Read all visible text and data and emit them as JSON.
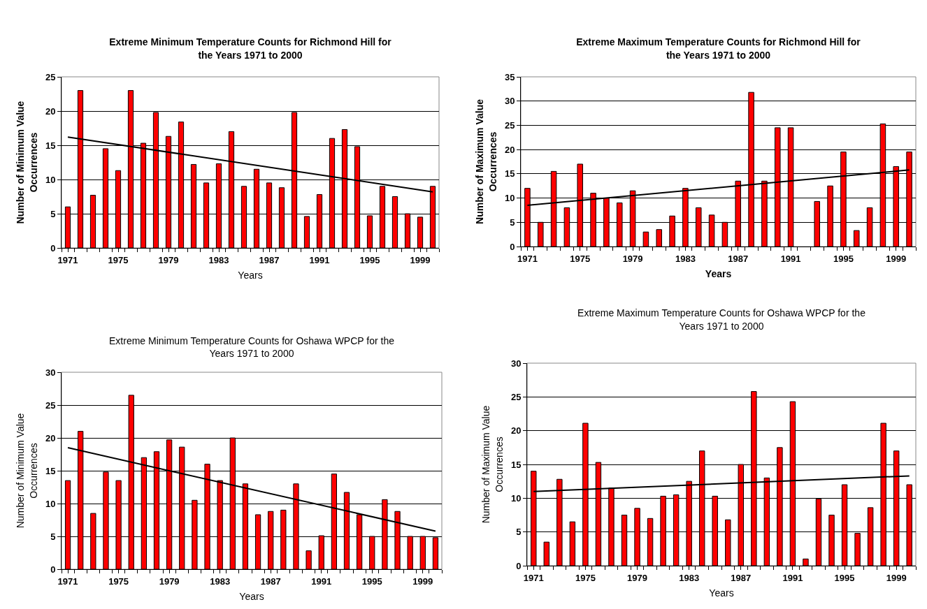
{
  "chart_data": [
    {
      "type": "bar",
      "title": "Extreme Minimum Temperature Counts for Richmond Hill for the Years 1971 to 2000",
      "xlabel": "Years",
      "ylabel": "Number of Minimum Value Occurrences",
      "x": [
        1971,
        1972,
        1973,
        1974,
        1975,
        1976,
        1977,
        1978,
        1979,
        1980,
        1981,
        1982,
        1983,
        1984,
        1985,
        1986,
        1987,
        1988,
        1989,
        1990,
        1991,
        1992,
        1993,
        1994,
        1995,
        1996,
        1997,
        1998,
        1999,
        2000
      ],
      "xlim": [
        1970.5,
        2000.5
      ],
      "xticks": [
        1971,
        1975,
        1979,
        1983,
        1987,
        1991,
        1995,
        1999
      ],
      "ylim": [
        0,
        25
      ],
      "yticks": [
        0,
        5,
        10,
        15,
        20,
        25
      ],
      "grid": "y",
      "series": [
        {
          "color": "#ff0000",
          "values": [
            6,
            23,
            7.7,
            14.5,
            11.3,
            23,
            15.3,
            19.8,
            16.3,
            18.4,
            12.2,
            9.5,
            12.3,
            17,
            9,
            11.5,
            9.5,
            8.8,
            19.8,
            4.6,
            7.8,
            16,
            17.3,
            14.8,
            4.7,
            9,
            7.5,
            5,
            4.5,
            9
          ]
        },
        {
          "type": "line",
          "color": "#000000",
          "values": [
            16.2,
            null,
            null,
            null,
            null,
            null,
            null,
            null,
            null,
            null,
            null,
            null,
            null,
            null,
            null,
            null,
            null,
            null,
            null,
            null,
            null,
            null,
            null,
            null,
            null,
            null,
            null,
            null,
            null,
            8.2
          ]
        }
      ]
    },
    {
      "type": "bar",
      "title": "Extreme Maximum Temperature Counts for Richmond Hill for the Years 1971 to 2000",
      "xlabel": "Years",
      "ylabel": "Number of Maximum Value Occurrences",
      "x": [
        1971,
        1972,
        1973,
        1974,
        1975,
        1976,
        1977,
        1978,
        1979,
        1980,
        1981,
        1982,
        1983,
        1984,
        1985,
        1986,
        1987,
        1988,
        1989,
        1990,
        1991,
        1992,
        1993,
        1994,
        1995,
        1996,
        1997,
        1998,
        1999,
        2000
      ],
      "xlim": [
        1970.5,
        2000.5
      ],
      "xticks": [
        1971,
        1975,
        1979,
        1983,
        1987,
        1991,
        1995,
        1999
      ],
      "ylim": [
        0,
        35
      ],
      "yticks": [
        0,
        5,
        10,
        15,
        20,
        25,
        30,
        35
      ],
      "grid": "y",
      "series": [
        {
          "color": "#ff0000",
          "values": [
            12,
            5,
            15.5,
            8,
            17,
            11,
            10,
            9,
            11.5,
            3,
            3.5,
            6.3,
            12,
            8,
            6.5,
            5,
            13.5,
            31.8,
            13.5,
            24.5,
            24.5,
            null,
            9.3,
            12.5,
            19.5,
            3.3,
            8,
            25.3,
            16.5,
            19.5
          ]
        },
        {
          "type": "line",
          "color": "#000000",
          "values": [
            8.5,
            null,
            null,
            null,
            null,
            null,
            null,
            null,
            null,
            null,
            null,
            null,
            null,
            null,
            null,
            null,
            null,
            null,
            null,
            null,
            null,
            null,
            null,
            null,
            null,
            null,
            null,
            null,
            null,
            15.8
          ]
        }
      ]
    },
    {
      "type": "bar",
      "title": "Extreme Minimum Temperature Counts for Oshawa WPCP for the Years 1971 to 2000",
      "xlabel": "Years",
      "ylabel": "Number of Minimum Value Occurrences",
      "x": [
        1971,
        1972,
        1973,
        1974,
        1975,
        1976,
        1977,
        1978,
        1979,
        1980,
        1981,
        1982,
        1983,
        1984,
        1985,
        1986,
        1987,
        1988,
        1989,
        1990,
        1991,
        1992,
        1993,
        1994,
        1995,
        1996,
        1997,
        1998,
        1999,
        2000
      ],
      "xlim": [
        1970.5,
        2000.5
      ],
      "xticks": [
        1971,
        1975,
        1979,
        1983,
        1987,
        1991,
        1995,
        1999
      ],
      "ylim": [
        0,
        30
      ],
      "yticks": [
        0,
        5,
        10,
        15,
        20,
        25,
        30
      ],
      "grid": "y",
      "series": [
        {
          "color": "#ff0000",
          "values": [
            13.5,
            21,
            8.5,
            14.8,
            13.5,
            26.5,
            17,
            17.9,
            19.7,
            18.6,
            10.5,
            16,
            13.5,
            20,
            13,
            8.3,
            8.8,
            9,
            13,
            2.8,
            5.1,
            14.5,
            11.7,
            8.3,
            5,
            10.6,
            8.8,
            5,
            5,
            4.8
          ]
        },
        {
          "type": "line",
          "color": "#000000",
          "values": [
            18.5,
            null,
            null,
            null,
            null,
            null,
            null,
            null,
            null,
            null,
            null,
            null,
            null,
            null,
            null,
            null,
            null,
            null,
            null,
            null,
            null,
            null,
            null,
            null,
            null,
            null,
            null,
            null,
            null,
            5.8
          ]
        }
      ]
    },
    {
      "type": "bar",
      "title": "Extreme Maximum Temperature Counts for Oshawa WPCP for the Years 1971 to 2000",
      "xlabel": "Years",
      "ylabel": "Number of Maximum Value Occurrences",
      "x": [
        1971,
        1972,
        1973,
        1974,
        1975,
        1976,
        1977,
        1978,
        1979,
        1980,
        1981,
        1982,
        1983,
        1984,
        1985,
        1986,
        1987,
        1988,
        1989,
        1990,
        1991,
        1992,
        1993,
        1994,
        1995,
        1996,
        1997,
        1998,
        1999,
        2000
      ],
      "xlim": [
        1970.5,
        2000.5
      ],
      "xticks": [
        1971,
        1975,
        1979,
        1983,
        1987,
        1991,
        1995,
        1999
      ],
      "ylim": [
        0,
        30
      ],
      "yticks": [
        0,
        5,
        10,
        15,
        20,
        25,
        30
      ],
      "grid": "y",
      "series": [
        {
          "color": "#ff0000",
          "values": [
            14,
            3.5,
            12.8,
            6.5,
            21.1,
            15.3,
            11.5,
            7.5,
            8.5,
            7,
            10.3,
            10.5,
            12.5,
            17,
            10.3,
            6.8,
            15,
            25.8,
            13,
            17.5,
            24.3,
            1,
            9.9,
            7.5,
            12,
            4.8,
            8.6,
            21.1,
            17,
            12
          ]
        },
        {
          "type": "line",
          "color": "#000000",
          "values": [
            11,
            null,
            null,
            null,
            null,
            null,
            null,
            null,
            null,
            null,
            null,
            null,
            null,
            null,
            null,
            null,
            null,
            null,
            null,
            null,
            null,
            null,
            null,
            null,
            null,
            null,
            null,
            null,
            null,
            13.3
          ]
        }
      ]
    }
  ]
}
